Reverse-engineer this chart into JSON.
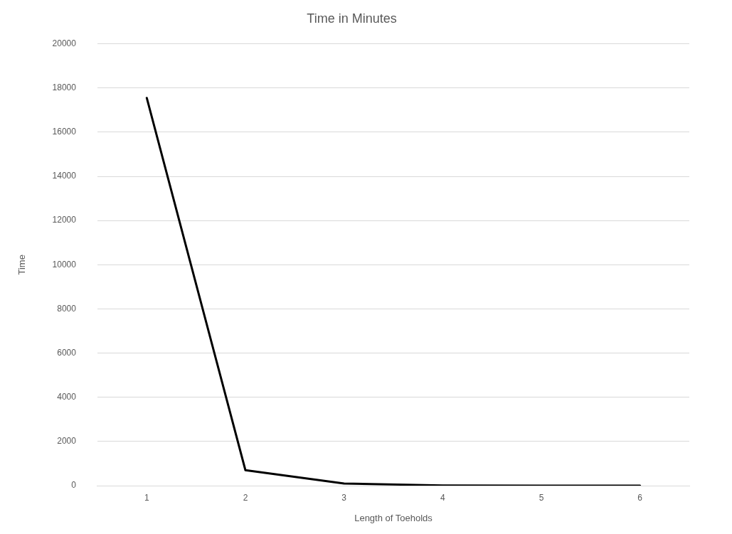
{
  "chart_data": {
    "type": "line",
    "title": "Time in Minutes",
    "xlabel": "Length of Toeholds",
    "ylabel": "Time",
    "categories": [
      "1",
      "2",
      "3",
      "4",
      "5",
      "6"
    ],
    "series": [
      {
        "color": "#000000",
        "values": [
          17550,
          700,
          100,
          10,
          0,
          0
        ]
      }
    ],
    "ylim": [
      0,
      20000
    ],
    "yticks": [
      0,
      2000,
      4000,
      6000,
      8000,
      10000,
      12000,
      14000,
      16000,
      18000,
      20000
    ],
    "grid": "y",
    "legend": false,
    "marker": "none",
    "line_style": "solid"
  }
}
